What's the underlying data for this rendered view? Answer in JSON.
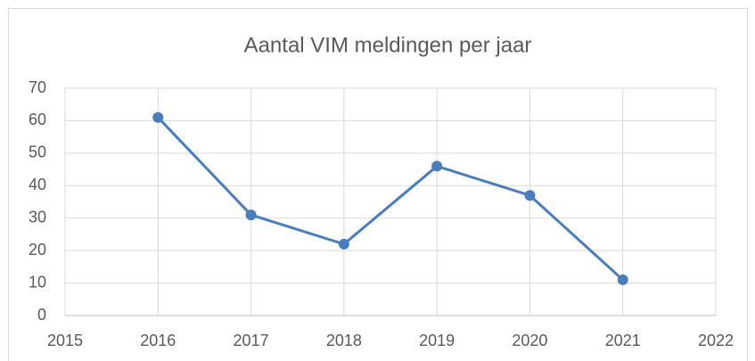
{
  "chart_data": {
    "type": "line",
    "title": "Aantal VIM meldingen per jaar",
    "x": [
      2016,
      2017,
      2018,
      2019,
      2020,
      2021
    ],
    "series": [
      {
        "name": "Aantal VIM meldingen",
        "color": "#4a7ebb",
        "values": [
          61,
          31,
          22,
          46,
          37,
          11
        ]
      }
    ],
    "xlim": [
      2015,
      2022
    ],
    "xticks": [
      2015,
      2016,
      2017,
      2018,
      2019,
      2020,
      2021,
      2022
    ],
    "ylim": [
      0,
      70
    ],
    "yticks": [
      0,
      10,
      20,
      30,
      40,
      50,
      60,
      70
    ],
    "grid": true
  }
}
